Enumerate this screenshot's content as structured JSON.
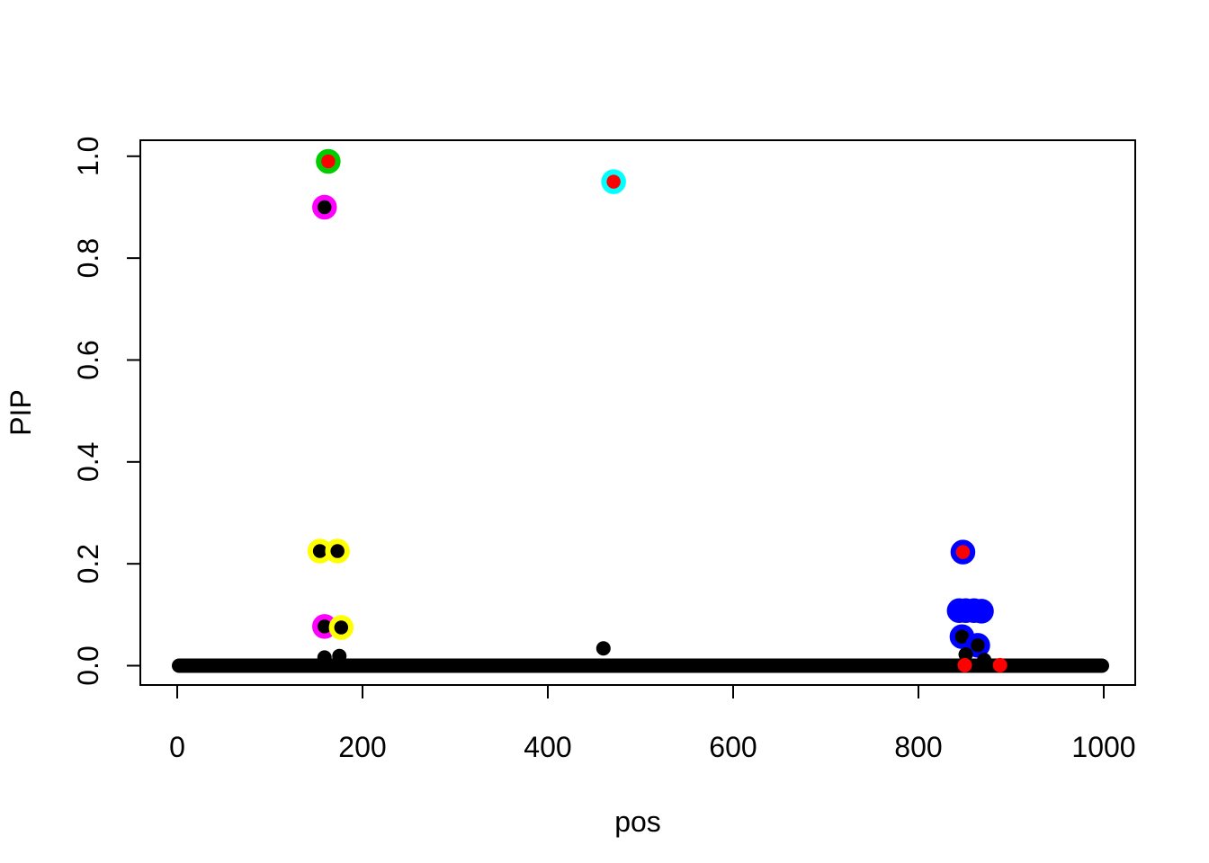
{
  "figure": {
    "background": "#ffffff",
    "description": "R base-graphics scatter plot of fine-mapping PIP values versus position, with credible-set points circled in colors"
  },
  "chart_data": {
    "type": "scatter",
    "title": "",
    "xlabel": "pos",
    "ylabel": "PIP",
    "xlim": [
      -40,
      1035
    ],
    "ylim": [
      -0.037,
      1.032
    ],
    "grid": false,
    "legend": null,
    "x_ticks": [
      {
        "value": 0,
        "label": "0"
      },
      {
        "value": 200,
        "label": "200"
      },
      {
        "value": 400,
        "label": "400"
      },
      {
        "value": 600,
        "label": "600"
      },
      {
        "value": 800,
        "label": "800"
      },
      {
        "value": 1000,
        "label": "1000"
      }
    ],
    "y_ticks": [
      {
        "value": 0.0,
        "label": "0.0"
      },
      {
        "value": 0.2,
        "label": "0.2"
      },
      {
        "value": 0.4,
        "label": "0.4"
      },
      {
        "value": 0.6,
        "label": "0.6"
      },
      {
        "value": 0.8,
        "label": "0.8"
      },
      {
        "value": 1.0,
        "label": "1.0"
      }
    ],
    "colors": {
      "point_default": "#000000",
      "point_signal": "#FF0000",
      "cs_green": "#00CD00",
      "cs_magenta": "#FF00FF",
      "cs_cyan": "#00FFFF",
      "cs_yellow": "#FFFF00",
      "cs_blue": "#0000FF"
    },
    "baseline_row": {
      "pip": 0.0,
      "pos_start": 0,
      "pos_end": 1000,
      "color": "#000000"
    },
    "points": [
      {
        "pos": 163,
        "pip": 0.99,
        "color": "#FF0000",
        "ring": "#00CD00"
      },
      {
        "pos": 159,
        "pip": 0.9,
        "color": "#000000",
        "ring": "#FF00FF"
      },
      {
        "pos": 471,
        "pip": 0.95,
        "color": "#FF0000",
        "ring": "#00FFFF"
      },
      {
        "pos": 154,
        "pip": 0.225,
        "color": "#000000",
        "ring": "#FFFF00"
      },
      {
        "pos": 173,
        "pip": 0.225,
        "color": "#000000",
        "ring": "#FFFF00"
      },
      {
        "pos": 159,
        "pip": 0.077,
        "color": "#000000",
        "ring": "#FF00FF"
      },
      {
        "pos": 177,
        "pip": 0.075,
        "color": "#000000",
        "ring": "#FFFF00"
      },
      {
        "pos": 159,
        "pip": 0.016,
        "color": "#000000",
        "ring": null
      },
      {
        "pos": 175,
        "pip": 0.019,
        "color": "#000000",
        "ring": null
      },
      {
        "pos": 460,
        "pip": 0.034,
        "color": "#000000",
        "ring": null
      },
      {
        "pos": 848,
        "pip": 0.223,
        "color": "#FF0000",
        "ring": "#0000FF"
      },
      {
        "pos": 844,
        "pip": 0.108,
        "color": "#0000FF",
        "ring": "#0000FF"
      },
      {
        "pos": 851,
        "pip": 0.108,
        "color": "#0000FF",
        "ring": "#0000FF"
      },
      {
        "pos": 860,
        "pip": 0.108,
        "color": "#0000FF",
        "ring": "#0000FF"
      },
      {
        "pos": 868,
        "pip": 0.107,
        "color": "#0000FF",
        "ring": "#0000FF"
      },
      {
        "pos": 847,
        "pip": 0.057,
        "color": "#000000",
        "ring": "#0000FF"
      },
      {
        "pos": 864,
        "pip": 0.04,
        "color": "#000000",
        "ring": "#0000FF"
      },
      {
        "pos": 851,
        "pip": 0.022,
        "color": "#000000",
        "ring": null
      },
      {
        "pos": 871,
        "pip": 0.011,
        "color": "#000000",
        "ring": null
      },
      {
        "pos": 850,
        "pip": 0.0,
        "color": "#FF0000",
        "ring": null
      },
      {
        "pos": 888,
        "pip": 0.0,
        "color": "#FF0000",
        "ring": null
      }
    ]
  }
}
